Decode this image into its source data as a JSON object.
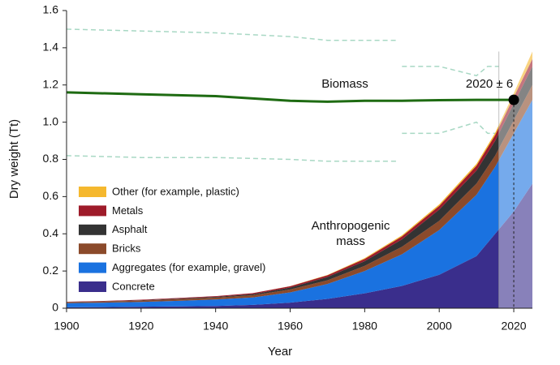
{
  "chart_data": {
    "type": "stacked-area",
    "xlabel": "Year",
    "ylabel": "Dry weight (Tt)",
    "xlim": [
      1900,
      2025
    ],
    "xticks": [
      1900,
      1920,
      1940,
      1960,
      1980,
      2000,
      2020
    ],
    "ylim": [
      0,
      1.6
    ],
    "yticks": [
      0,
      0.2,
      0.4,
      0.6,
      0.8,
      {
        "value": 1,
        "label": "1.0"
      },
      1.2,
      1.4,
      1.6
    ],
    "x": [
      1900,
      1910,
      1920,
      1930,
      1940,
      1950,
      1960,
      1970,
      1980,
      1990,
      2000,
      2010,
      2015,
      2020,
      2025
    ],
    "series": [
      {
        "name": "Concrete",
        "color": "#3a2e8c",
        "values": [
          0.005,
          0.006,
          0.008,
          0.01,
          0.012,
          0.018,
          0.03,
          0.05,
          0.08,
          0.12,
          0.18,
          0.28,
          0.4,
          0.52,
          0.67
        ]
      },
      {
        "name": "Aggregates (for example, gravel)",
        "color": "#1a72e0",
        "values": [
          0.022,
          0.024,
          0.026,
          0.03,
          0.035,
          0.04,
          0.055,
          0.08,
          0.12,
          0.17,
          0.24,
          0.33,
          0.36,
          0.42,
          0.45
        ]
      },
      {
        "name": "Bricks",
        "color": "#8b4a2b",
        "values": [
          0.005,
          0.006,
          0.007,
          0.009,
          0.01,
          0.012,
          0.016,
          0.02,
          0.028,
          0.04,
          0.05,
          0.06,
          0.06,
          0.07,
          0.08
        ]
      },
      {
        "name": "Asphalt",
        "color": "#333333",
        "values": [
          0.001,
          0.001,
          0.002,
          0.003,
          0.004,
          0.006,
          0.01,
          0.018,
          0.025,
          0.04,
          0.06,
          0.07,
          0.08,
          0.09,
          0.1
        ]
      },
      {
        "name": "Metals",
        "color": "#9e1b2a",
        "values": [
          0.002,
          0.002,
          0.003,
          0.003,
          0.004,
          0.005,
          0.007,
          0.009,
          0.012,
          0.016,
          0.02,
          0.026,
          0.03,
          0.035,
          0.04
        ]
      },
      {
        "name": "Other (for example, plastic)",
        "color": "#f5b82e",
        "values": [
          0,
          0,
          0,
          0,
          0,
          0,
          0.001,
          0.002,
          0.004,
          0.006,
          0.008,
          0.01,
          0.012,
          0.02,
          0.04
        ]
      }
    ],
    "projection_start": 2016,
    "biomass": {
      "name": "Biomass",
      "color": "#1e6b12",
      "range_color": "#a8d8c4",
      "x": [
        1900,
        1920,
        1940,
        1960,
        1970,
        1980,
        1989,
        1989.5,
        1990,
        2000,
        2010,
        2013,
        2016,
        2020
      ],
      "values": [
        1.16,
        1.15,
        1.14,
        1.115,
        1.11,
        1.115,
        1.115,
        1.115,
        1.115,
        1.118,
        1.12,
        1.12,
        1.12,
        1.12
      ],
      "upper": [
        1.5,
        1.49,
        1.48,
        1.46,
        1.44,
        1.44,
        1.44,
        null,
        1.3,
        1.3,
        1.25,
        1.3,
        1.3,
        null
      ],
      "lower": [
        0.82,
        0.81,
        0.81,
        0.8,
        0.79,
        0.79,
        0.79,
        null,
        0.94,
        0.94,
        1.0,
        0.94,
        0.94,
        null
      ]
    },
    "crossover": {
      "x": 2020,
      "y": 1.12,
      "label": "2020 ± 6"
    },
    "annotation": "Anthropogenic mass"
  }
}
